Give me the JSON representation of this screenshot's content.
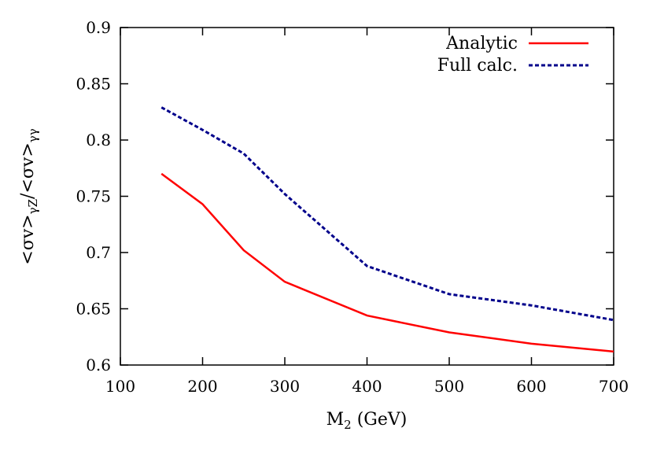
{
  "chart_data": {
    "type": "line",
    "title": "",
    "xlabel": "M",
    "xlabel_sub": "2",
    "xlabel_unit": " (GeV)",
    "ylabel_parts": {
      "a": "<σv>",
      "a_sub": "γZ",
      "sep": "/",
      "b": "<σv>",
      "b_sub": "γγ"
    },
    "xlim": [
      100,
      700
    ],
    "ylim": [
      0.6,
      0.9
    ],
    "xticks": [
      "100",
      "200",
      "300",
      "400",
      "500",
      "600",
      "700"
    ],
    "yticks": [
      "0.6",
      "0.65",
      "0.7",
      "0.75",
      "0.8",
      "0.85",
      "0.9"
    ],
    "grid": false,
    "legend_position": "top-right",
    "x": [
      150,
      200,
      250,
      300,
      400,
      500,
      600,
      700
    ],
    "series": [
      {
        "name": "Analytic",
        "color": "#ff0000",
        "style": "solid",
        "values": [
          0.77,
          0.743,
          0.702,
          0.674,
          0.644,
          0.629,
          0.619,
          0.612
        ]
      },
      {
        "name": "Full calc.",
        "color": "#00008b",
        "style": "dashed",
        "values": [
          0.829,
          0.809,
          0.788,
          0.752,
          0.688,
          0.663,
          0.653,
          0.64
        ]
      }
    ]
  }
}
